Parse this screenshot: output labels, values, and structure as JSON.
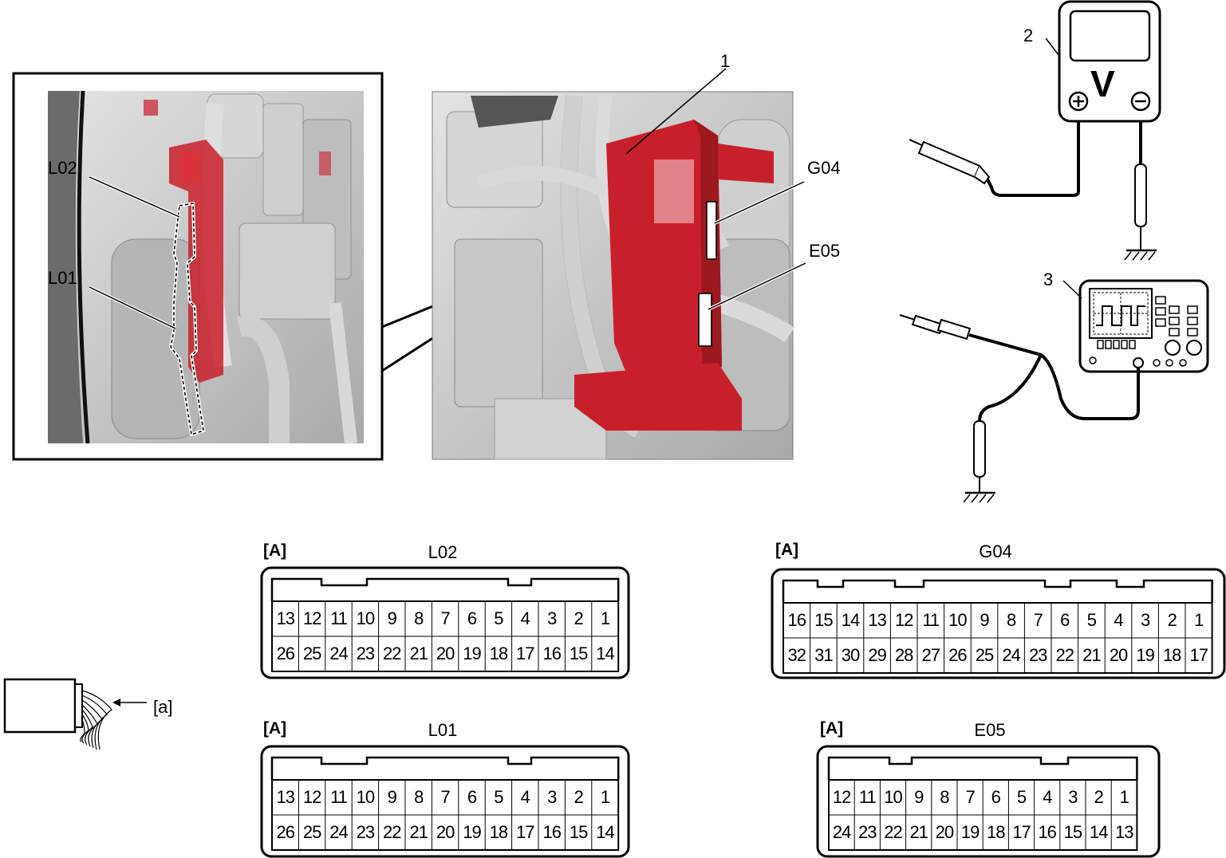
{
  "callouts": {
    "inset_l02": "L02",
    "inset_l01": "L01",
    "item_1": "1",
    "item_2": "2",
    "item_3": "3",
    "g04": "G04",
    "e05": "E05",
    "wire_a": "[a]"
  },
  "multimeter": {
    "display_symbol": "V",
    "plus": "+",
    "minus": "−"
  },
  "connectors": [
    {
      "id": "L02",
      "tag": "[A]",
      "title": "L02",
      "row1": [
        "13",
        "12",
        "11",
        "10",
        "9",
        "8",
        "7",
        "6",
        "5",
        "4",
        "3",
        "2",
        "1"
      ],
      "row2": [
        "26",
        "25",
        "24",
        "23",
        "22",
        "21",
        "20",
        "19",
        "18",
        "17",
        "16",
        "15",
        "14"
      ]
    },
    {
      "id": "L01",
      "tag": "[A]",
      "title": "L01",
      "row1": [
        "13",
        "12",
        "11",
        "10",
        "9",
        "8",
        "7",
        "6",
        "5",
        "4",
        "3",
        "2",
        "1"
      ],
      "row2": [
        "26",
        "25",
        "24",
        "23",
        "22",
        "21",
        "20",
        "19",
        "18",
        "17",
        "16",
        "15",
        "14"
      ]
    },
    {
      "id": "G04",
      "tag": "[A]",
      "title": "G04",
      "row1": [
        "16",
        "15",
        "14",
        "13",
        "12",
        "11",
        "10",
        "9",
        "8",
        "7",
        "6",
        "5",
        "4",
        "3",
        "2",
        "1"
      ],
      "row2": [
        "32",
        "31",
        "30",
        "29",
        "28",
        "27",
        "26",
        "25",
        "24",
        "23",
        "22",
        "21",
        "20",
        "19",
        "18",
        "17"
      ]
    },
    {
      "id": "E05",
      "tag": "[A]",
      "title": "E05",
      "row1": [
        "12",
        "11",
        "10",
        "9",
        "8",
        "7",
        "6",
        "5",
        "4",
        "3",
        "2",
        "1"
      ],
      "row2": [
        "24",
        "23",
        "22",
        "21",
        "20",
        "19",
        "18",
        "17",
        "16",
        "15",
        "14",
        "13"
      ]
    }
  ],
  "colors": {
    "ecu_red": "#c8202a",
    "engine_gray": "#c9c9c9",
    "line": "#000000"
  }
}
